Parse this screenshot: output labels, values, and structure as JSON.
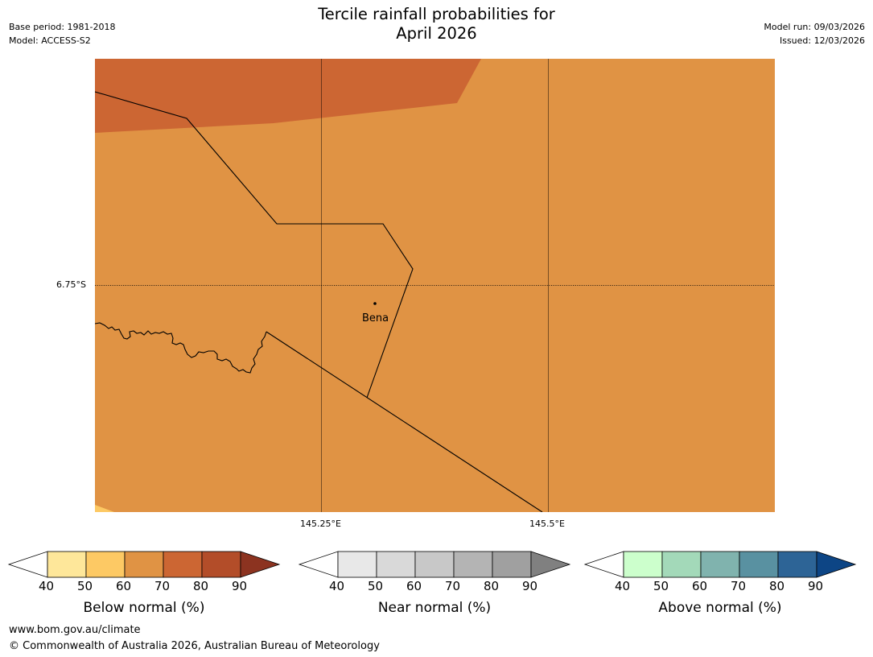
{
  "header": {
    "title_line1": "Tercile rainfall probabilities for",
    "title_line2": "April 2026",
    "base_period": "Base period: 1981-2018",
    "model": "Model: ACCESS-S2",
    "model_run": "Model run: 09/03/2026",
    "issued": "Issued: 12/03/2026"
  },
  "map": {
    "lat_label": "6.75°S",
    "lon_labels": [
      "145.25°E",
      "145.5°E"
    ],
    "place": "Bena",
    "colors": {
      "c60_70": "#e09344",
      "c70_80": "#cc6633",
      "c40_50": "#fee79a",
      "c50_60": "#fdc964"
    }
  },
  "colorbars": [
    {
      "label": "Below normal (%)",
      "ticks": [
        "40",
        "50",
        "60",
        "70",
        "80",
        "90"
      ],
      "colors": [
        "#fee79a",
        "#fdc964",
        "#e09344",
        "#cc6633",
        "#b34d29",
        "#8c3320"
      ]
    },
    {
      "label": "Near normal (%)",
      "ticks": [
        "40",
        "50",
        "60",
        "70",
        "80",
        "90"
      ],
      "colors": [
        "#e8e8e8",
        "#d9d9d9",
        "#c8c8c8",
        "#b4b4b4",
        "#a0a0a0",
        "#808080"
      ]
    },
    {
      "label": "Above normal (%)",
      "ticks": [
        "40",
        "50",
        "60",
        "70",
        "80",
        "90"
      ],
      "colors": [
        "#ccffcc",
        "#a3d9b9",
        "#80b3ae",
        "#5991a1",
        "#2d6496",
        "#0d4585"
      ]
    }
  ],
  "footer": {
    "url": "www.bom.gov.au/climate",
    "copyright": "© Commonwealth of Australia 2026, Australian Bureau of Meteorology"
  }
}
